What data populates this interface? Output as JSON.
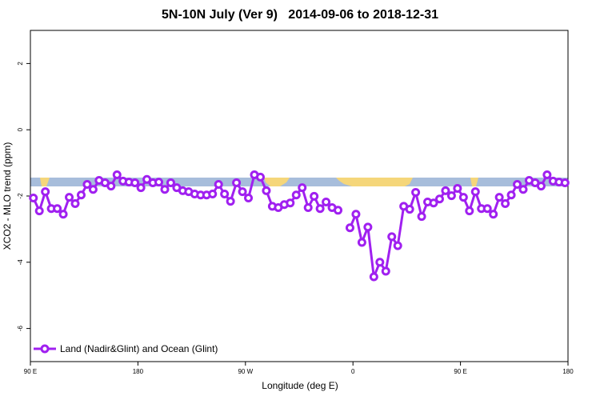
{
  "chart_data": {
    "type": "line",
    "title": "5N-10N July (Ver 9)   2014-09-06 to 2018-12-31",
    "x_label": "Longitude (deg E)",
    "y_label": "XCO2 - MLO trend (ppm)",
    "xlim": [
      90,
      540
    ],
    "xticks": [
      {
        "value": 90,
        "label": "90 E"
      },
      180,
      {
        "value": 270,
        "label": "90 W"
      },
      {
        "value": 360,
        "label": "0"
      },
      {
        "value": 450,
        "label": "90 E"
      },
      {
        "value": 540,
        "label": "180"
      }
    ],
    "ylim": [
      -7,
      3
    ],
    "yticks": [
      2,
      0,
      -2,
      -4,
      -6
    ],
    "legend": "bottom-left",
    "x": [
      92.5,
      97.5,
      102.5,
      107.5,
      112.5,
      117.5,
      122.5,
      127.5,
      132.5,
      137.5,
      142.5,
      147.5,
      152.5,
      157.5,
      162.5,
      167.5,
      172.5,
      177.5,
      182.5,
      187.5,
      192.5,
      197.5,
      202.5,
      207.5,
      212.5,
      217.5,
      222.5,
      227.5,
      232.5,
      237.5,
      242.5,
      247.5,
      252.5,
      257.5,
      262.5,
      267.5,
      272.5,
      277.5,
      282.5,
      287.5,
      292.5,
      297.5,
      302.5,
      307.5,
      312.5,
      317.5,
      322.5,
      327.5,
      332.5,
      337.5,
      342.5,
      347.5,
      352.5,
      357.5,
      362.5,
      367.5,
      372.5,
      377.5,
      382.5,
      387.5,
      392.5,
      397.5,
      402.5,
      407.5,
      412.5,
      417.5,
      422.5,
      427.5,
      432.5,
      437.5,
      442.5,
      447.5,
      452.5,
      457.5,
      462.5,
      467.5,
      472.5,
      477.5,
      482.5,
      487.5,
      492.5,
      497.5,
      502.5,
      507.5,
      512.5,
      517.5,
      522.5,
      527.5,
      532.5,
      537.5
    ],
    "series": [
      {
        "name": "Land (Nadir&Glint) and Ocean (Glint)",
        "color": "#a020f0",
        "values": [
          -2.06,
          -2.45,
          -1.87,
          -2.38,
          -2.38,
          -2.55,
          -2.04,
          -2.23,
          -1.97,
          -1.65,
          -1.8,
          -1.53,
          -1.6,
          -1.7,
          -1.36,
          -1.55,
          -1.58,
          -1.6,
          -1.75,
          -1.5,
          -1.6,
          -1.58,
          -1.8,
          -1.6,
          -1.75,
          -1.84,
          -1.87,
          -1.94,
          -1.97,
          -1.97,
          -1.94,
          -1.65,
          -1.94,
          -2.16,
          -1.6,
          -1.87,
          -2.06,
          -1.36,
          -1.43,
          -1.84,
          -2.31,
          -2.35,
          -2.26,
          -2.21,
          -1.97,
          -1.75,
          -2.35,
          -2.01,
          -2.38,
          -2.18,
          -2.35,
          -2.43,
          null,
          -2.96,
          -2.55,
          -3.4,
          -2.94,
          -4.44,
          -4.0,
          -4.27,
          -3.23,
          -3.5,
          -2.31,
          -2.4,
          -1.89,
          -2.62,
          -2.18,
          -2.21,
          -2.09,
          -1.84,
          -1.99,
          -1.77,
          -2.04,
          -2.45,
          -1.87,
          -2.38,
          -2.38,
          -2.55,
          -2.04,
          -2.23,
          -1.97,
          -1.65,
          -1.8,
          -1.53,
          -1.6,
          -1.7,
          -1.36,
          -1.55,
          -1.58,
          -1.6
        ]
      }
    ]
  }
}
